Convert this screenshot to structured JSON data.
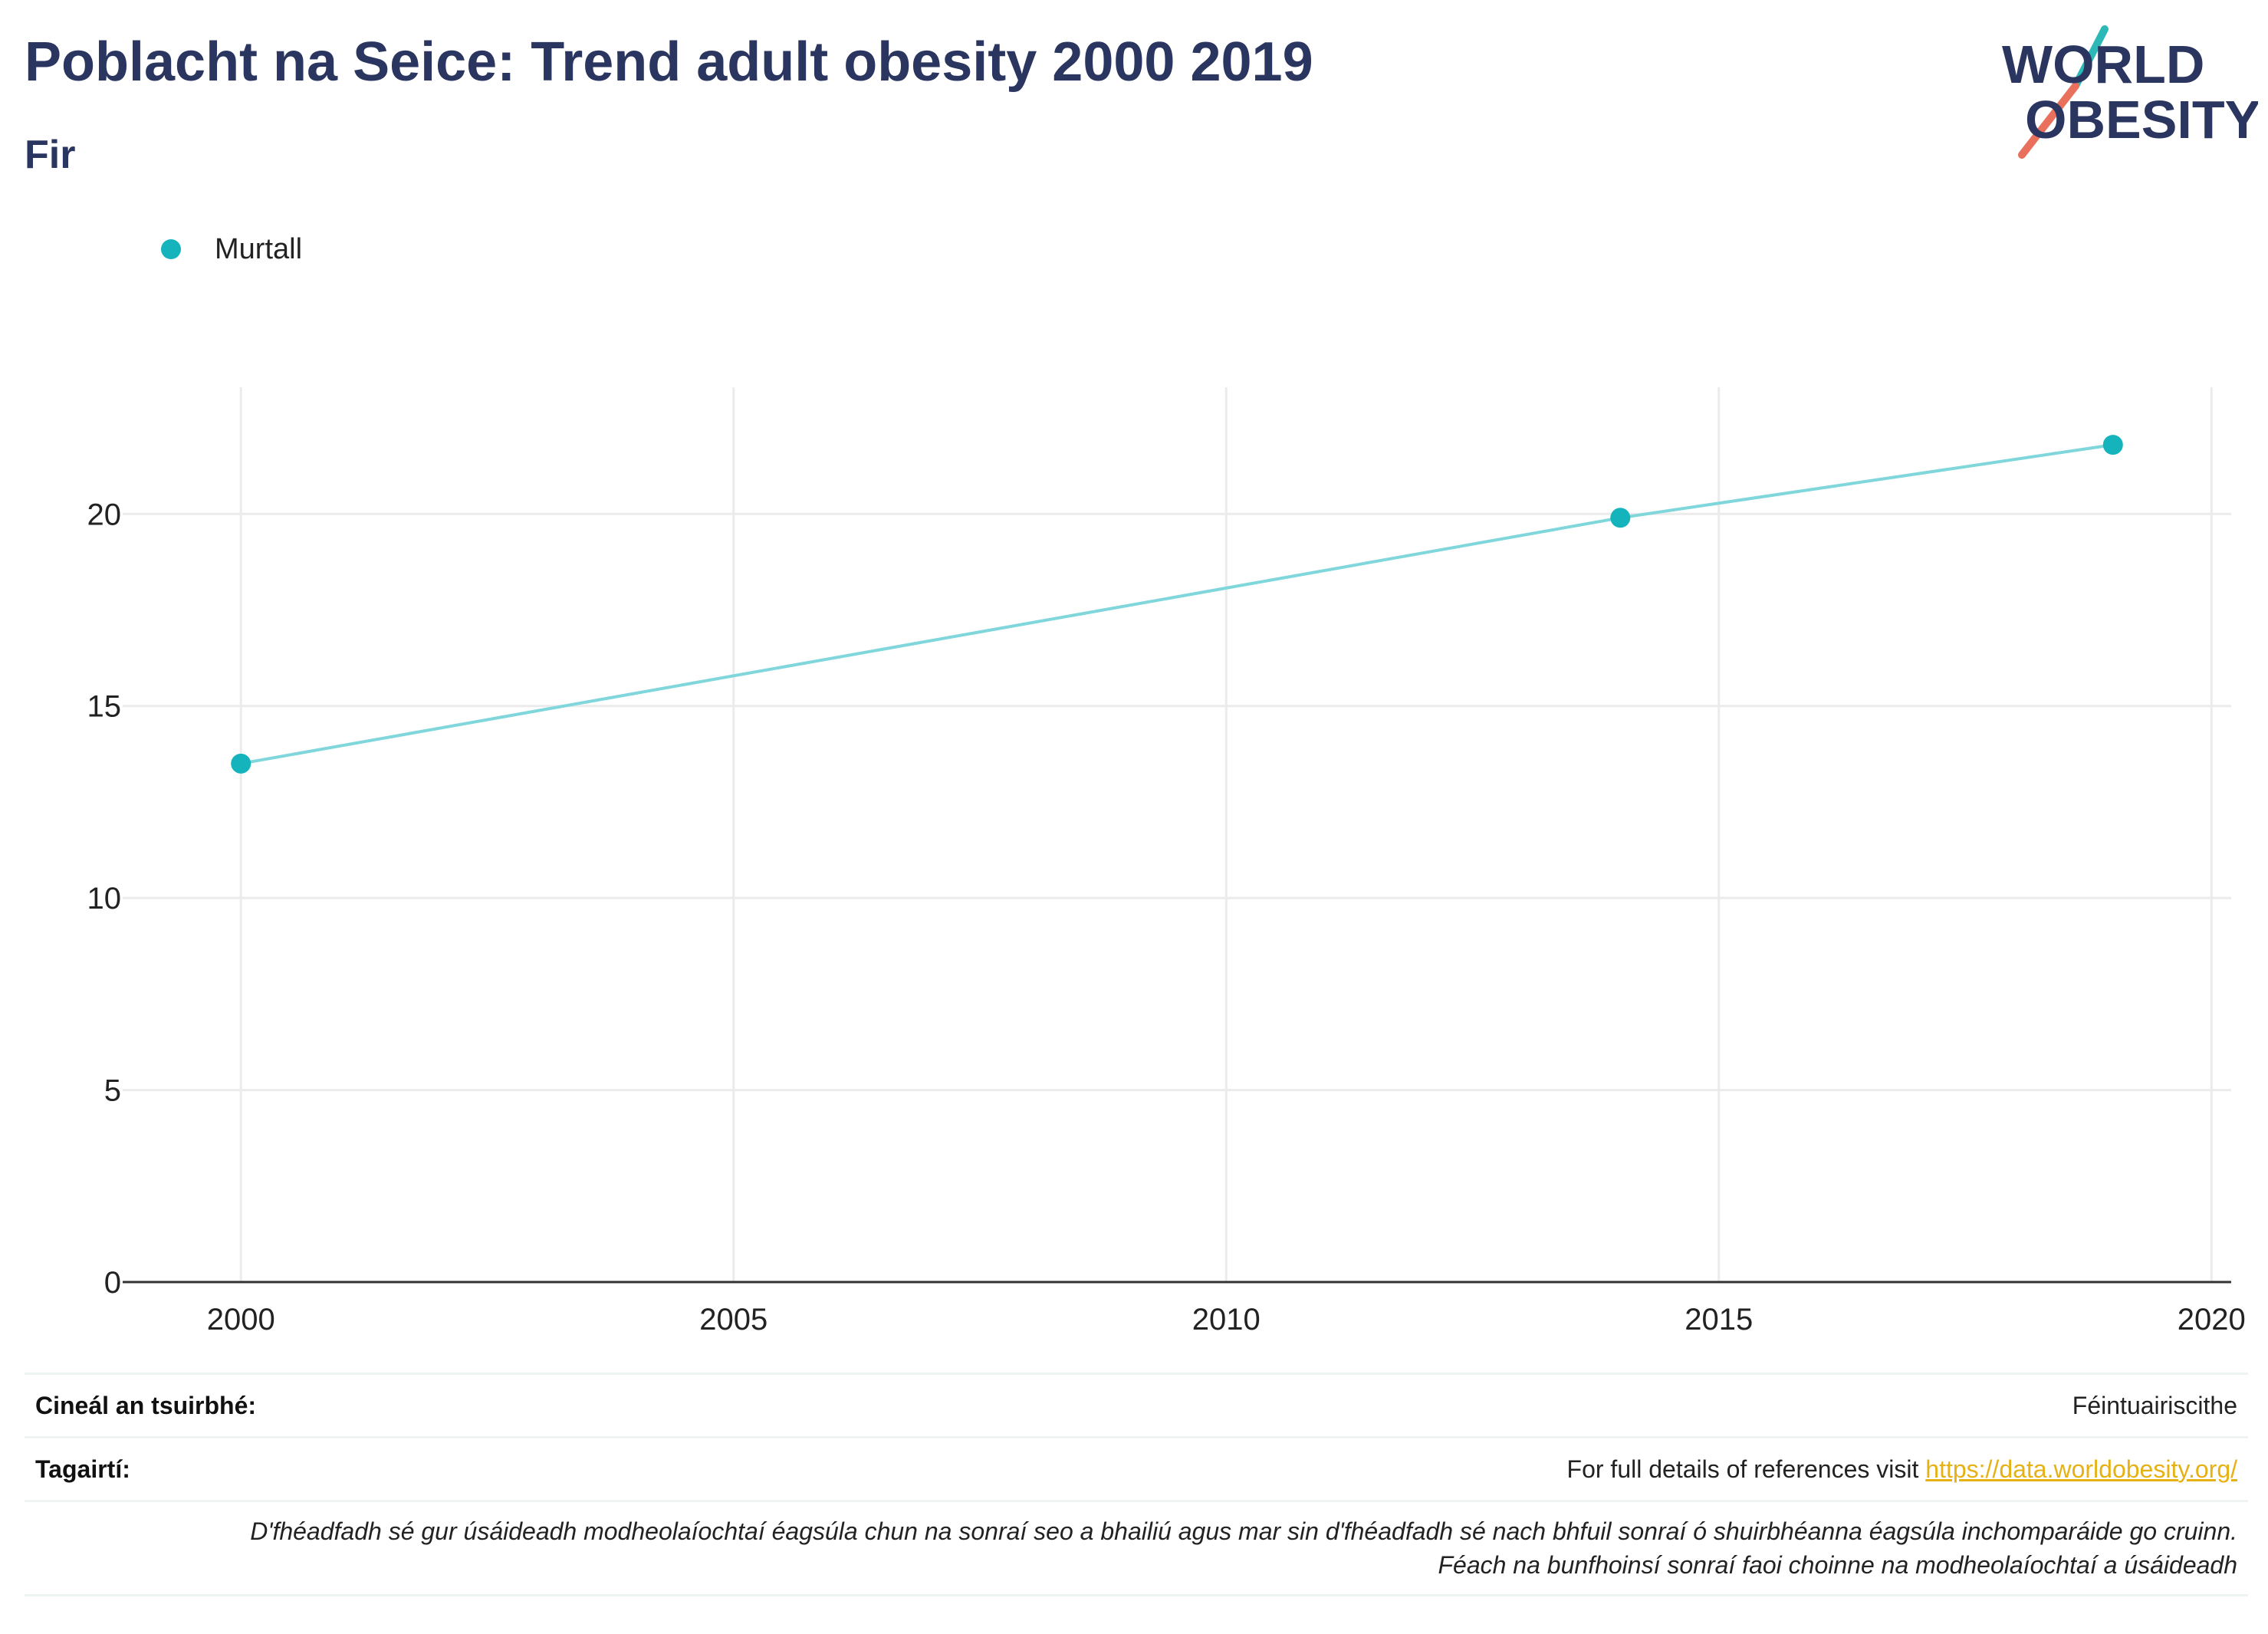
{
  "header": {
    "title": "Poblacht na Seice: Trend adult obesity 2000 2019",
    "subtitle": "Fir"
  },
  "logo": {
    "line1": "WORLD",
    "line2": "OBESITY"
  },
  "legend": {
    "label": "Murtall"
  },
  "colors": {
    "series": "#15b4bd",
    "line": "#7fd6db",
    "title": "#2b3660",
    "link": "#e6b114",
    "logo_teal": "#2bb8b6",
    "logo_red": "#e8705c"
  },
  "chart_data": {
    "type": "line",
    "title": "Poblacht na Seice: Trend adult obesity 2000 2019",
    "subtitle": "Fir",
    "series": [
      {
        "name": "Murtall",
        "x": [
          2000,
          2014,
          2019
        ],
        "y": [
          13.5,
          19.9,
          21.8
        ]
      }
    ],
    "xlim": [
      1998.8,
      2020.2
    ],
    "ylim": [
      0,
      23.3
    ],
    "xticks": [
      2000,
      2005,
      2010,
      2015,
      2020
    ],
    "yticks": [
      0,
      5,
      10,
      15,
      20
    ],
    "xlabel": "",
    "ylabel": "",
    "grid": true,
    "legend_position": "top-left"
  },
  "footer": {
    "survey_label": "Cineál an tsuirbhé:",
    "survey_value": "Féintuairiscithe",
    "refs_label": "Tagairtí:",
    "refs_text": "For full details of references visit ",
    "refs_link": "https://data.worldobesity.org/",
    "note_line1": "D'fhéadfadh sé gur úsáideadh modheolaíochtaí éagsúla chun na sonraí seo a bhailiú agus mar sin d'fhéadfadh sé nach bhfuil sonraí ó shuirbhéanna éagsúla inchomparáide go cruinn.",
    "note_line2": "Féach na bunfhoinsí sonraí faoi choinne na modheolaíochtaí a úsáideadh"
  }
}
